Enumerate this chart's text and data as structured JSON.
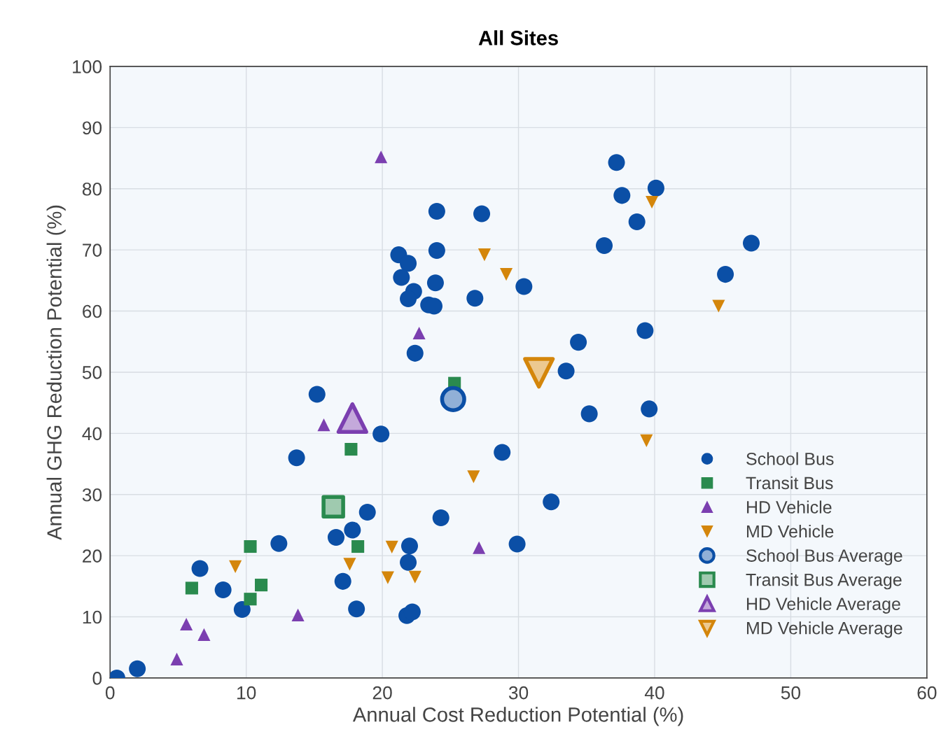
{
  "chart_data": {
    "type": "scatter",
    "title": "All Sites",
    "xlabel": "Annual Cost Reduction Potential (%)",
    "ylabel": "Annual GHG Reduction Potential (%)",
    "xlim": [
      0,
      60
    ],
    "ylim": [
      0,
      100
    ],
    "xticks": [
      0,
      10,
      20,
      30,
      40,
      50,
      60
    ],
    "yticks": [
      0,
      10,
      20,
      30,
      40,
      50,
      60,
      70,
      80,
      90,
      100
    ],
    "grid": true,
    "legend": "bottom right",
    "series": [
      {
        "name": "School Bus",
        "color": "#0b4fa6",
        "marker": "circle",
        "x": [
          0.5,
          2.0,
          6.6,
          8.3,
          9.7,
          12.4,
          13.7,
          15.2,
          16.6,
          17.8,
          18.9,
          17.1,
          18.1,
          22.0,
          21.9,
          21.8,
          22.2,
          24.3,
          19.9,
          24.0,
          24.0,
          21.2,
          21.9,
          21.4,
          23.9,
          22.3,
          21.9,
          23.4,
          23.8,
          22.4,
          37.2,
          40.1,
          37.6,
          38.7,
          36.3,
          47.1,
          27.3,
          30.4,
          26.8,
          45.2,
          39.3,
          34.4,
          33.5,
          35.2,
          39.6,
          28.8,
          32.4,
          29.9
        ],
        "values": [
          0,
          1.5,
          17.9,
          14.4,
          11.2,
          22.0,
          36.0,
          46.4,
          23.0,
          24.2,
          27.1,
          15.8,
          11.3,
          21.6,
          18.9,
          10.2,
          10.8,
          26.2,
          39.9,
          76.3,
          69.9,
          69.2,
          67.8,
          65.5,
          64.6,
          63.2,
          62.0,
          61.0,
          60.8,
          53.1,
          84.3,
          80.1,
          78.9,
          74.6,
          70.7,
          71.1,
          75.9,
          64.0,
          62.1,
          66.0,
          56.8,
          54.9,
          50.2,
          43.2,
          44.0,
          36.9,
          28.8,
          21.9
        ]
      },
      {
        "name": "Transit Bus",
        "color": "#2a8a4e",
        "marker": "square",
        "x": [
          17.7,
          25.3,
          10.3,
          6.0,
          11.1,
          10.3,
          18.2
        ],
        "values": [
          37.4,
          48.2,
          21.5,
          14.7,
          15.2,
          12.9,
          21.5
        ]
      },
      {
        "name": "HD Vehicle",
        "color": "#7b3fb0",
        "marker": "triangle",
        "x": [
          19.9,
          22.7,
          15.7,
          27.1,
          5.6,
          6.9,
          4.9,
          13.8
        ],
        "values": [
          85.2,
          56.4,
          41.4,
          21.3,
          8.8,
          7.1,
          3.1,
          10.3
        ]
      },
      {
        "name": "MD Vehicle",
        "color": "#d4860b",
        "marker": "triangle_down",
        "x": [
          39.8,
          27.5,
          29.1,
          44.7,
          39.4,
          26.7,
          9.2,
          17.6,
          20.7,
          20.4,
          22.4
        ],
        "values": [
          77.8,
          69.2,
          66.0,
          60.8,
          38.8,
          32.9,
          18.2,
          18.6,
          21.4,
          16.4,
          16.5
        ]
      },
      {
        "name": "School Bus Average",
        "color": "#0b4fa6",
        "marker": "circle",
        "type": "bubble",
        "sizes": [
          1
        ],
        "x": [
          25.2
        ],
        "values": [
          45.6
        ]
      },
      {
        "name": "Transit Bus Average",
        "color": "#2a8a4e",
        "marker": "square",
        "type": "bubble",
        "sizes": [
          1
        ],
        "x": [
          16.4
        ],
        "values": [
          28.0
        ]
      },
      {
        "name": "HD Vehicle Average",
        "color": "#7b3fb0",
        "marker": "triangle",
        "type": "bubble",
        "sizes": [
          1
        ],
        "x": [
          17.8
        ],
        "values": [
          42.5
        ]
      },
      {
        "name": "MD Vehicle Average",
        "color": "#d4860b",
        "marker": "triangle_down",
        "type": "bubble",
        "sizes": [
          1
        ],
        "x": [
          31.5
        ],
        "values": [
          49.9
        ]
      }
    ]
  }
}
